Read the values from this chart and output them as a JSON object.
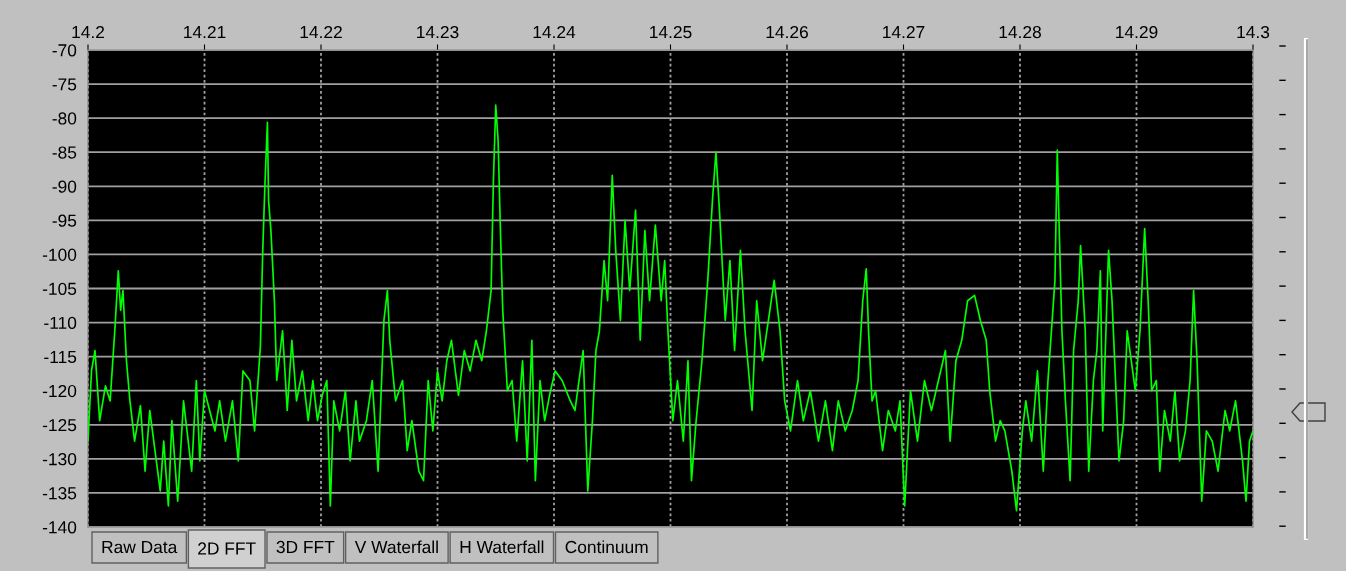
{
  "chart_data": {
    "type": "line",
    "x": [
      14.2,
      14.2003,
      14.2006,
      14.201,
      14.2015,
      14.2019,
      14.2023,
      14.2026,
      14.2028,
      14.203,
      14.2033,
      14.2036,
      14.204,
      14.2045,
      14.2049,
      14.2053,
      14.2062,
      14.2065,
      14.2069,
      14.2072,
      14.2077,
      14.2082,
      14.2086,
      14.2089,
      14.2093,
      14.2096,
      14.21,
      14.2109,
      14.2113,
      14.2118,
      14.2124,
      14.2129,
      14.2133,
      14.2139,
      14.2143,
      14.2148,
      14.215,
      14.2152,
      14.2154,
      14.2155,
      14.2157,
      14.216,
      14.2162,
      14.2167,
      14.2171,
      14.2175,
      14.2179,
      14.2184,
      14.2189,
      14.2193,
      14.2197,
      14.2201,
      14.2205,
      14.2208,
      14.2211,
      14.2216,
      14.2221,
      14.2225,
      14.223,
      14.2233,
      14.2239,
      14.2244,
      14.2249,
      14.2254,
      14.2257,
      14.2259,
      14.2264,
      14.227,
      14.2274,
      14.2278,
      14.2284,
      14.2288,
      14.2292,
      14.2296,
      14.23,
      14.2304,
      14.2308,
      14.2312,
      14.2318,
      14.2323,
      14.2328,
      14.2333,
      14.2338,
      14.2342,
      14.2346,
      14.2348,
      14.235,
      14.2352,
      14.2354,
      14.2356,
      14.236,
      14.2364,
      14.2368,
      14.2373,
      14.2377,
      14.2381,
      14.2384,
      14.2388,
      14.2392,
      14.2397,
      14.2401,
      14.2407,
      14.2414,
      14.2418,
      14.2425,
      14.2429,
      14.2433,
      14.2436,
      14.2439,
      14.2443,
      14.2446,
      14.245,
      14.2453,
      14.2457,
      14.2461,
      14.2465,
      14.247,
      14.2474,
      14.2478,
      14.2482,
      14.2487,
      14.2492,
      14.2495,
      14.2498,
      14.2502,
      14.2506,
      14.2511,
      14.2515,
      14.2518,
      14.2522,
      14.2527,
      14.2532,
      14.2536,
      14.2539,
      14.2542,
      14.2547,
      14.2551,
      14.2555,
      14.256,
      14.2564,
      14.257,
      14.2574,
      14.2579,
      14.2584,
      14.2589,
      14.2594,
      14.2598,
      14.2603,
      14.2609,
      14.2614,
      14.262,
      14.2627,
      14.2633,
      14.2639,
      14.2644,
      14.265,
      14.2656,
      14.2661,
      14.2665,
      14.2668,
      14.267,
      14.2673,
      14.2676,
      14.2682,
      14.2687,
      14.2693,
      14.2697,
      14.2701,
      14.2706,
      14.2712,
      14.2718,
      14.2724,
      14.273,
      14.2736,
      14.274,
      14.2745,
      14.275,
      14.2755,
      14.2761,
      14.2766,
      14.2771,
      14.2774,
      14.2779,
      14.2783,
      14.2787,
      14.2793,
      14.2797,
      14.2802,
      14.2805,
      14.281,
      14.2815,
      14.282,
      14.2824,
      14.2827,
      14.283,
      14.2832,
      14.2833,
      14.2836,
      14.2839,
      14.2843,
      14.2846,
      14.285,
      14.2852,
      14.2856,
      14.2859,
      14.2863,
      14.2866,
      14.2869,
      14.2871,
      14.2876,
      14.2879,
      14.2882,
      14.2885,
      14.2889,
      14.2892,
      14.2899,
      14.2903,
      14.2907,
      14.291,
      14.2913,
      14.2917,
      14.292,
      14.2924,
      14.2929,
      14.2933,
      14.2937,
      14.2942,
      14.2946,
      14.2949,
      14.2952,
      14.2956,
      14.296,
      14.2965,
      14.297,
      14.2976,
      14.298,
      14.2985,
      14.2991,
      14.2994,
      14.2997,
      14.3
    ],
    "series": [
      {
        "color": "#00ff00",
        "values": [
          -127.4,
          -117.1,
          -114.1,
          -124.4,
          -119.3,
          -121.5,
          -111.2,
          -102.4,
          -108.2,
          -105.3,
          -115.6,
          -121.5,
          -127.4,
          -122.2,
          -131.8,
          -122.9,
          -134.7,
          -127.4,
          -136.9,
          -124.4,
          -136.2,
          -121.5,
          -127.4,
          -131.8,
          -118.5,
          -130.3,
          -120.0,
          -125.9,
          -121.5,
          -127.4,
          -121.5,
          -130.3,
          -117.1,
          -118.5,
          -125.9,
          -113.4,
          -99.4,
          -89.1,
          -80.6,
          -92.1,
          -96.5,
          -106.8,
          -118.5,
          -111.2,
          -122.9,
          -112.6,
          -121.5,
          -117.1,
          -124.4,
          -118.5,
          -124.4,
          -120.7,
          -118.5,
          -136.9,
          -121.5,
          -125.9,
          -120.0,
          -130.3,
          -121.5,
          -127.4,
          -124.4,
          -118.5,
          -131.8,
          -109.7,
          -105.3,
          -112.6,
          -121.5,
          -118.5,
          -128.8,
          -124.4,
          -131.8,
          -133.2,
          -118.5,
          -125.9,
          -117.1,
          -121.5,
          -115.6,
          -112.6,
          -120.7,
          -114.1,
          -117.1,
          -112.6,
          -115.6,
          -111.2,
          -105.3,
          -89.1,
          -78.1,
          -83.2,
          -96.5,
          -108.2,
          -120.0,
          -118.5,
          -127.4,
          -115.6,
          -130.3,
          -112.6,
          -133.2,
          -118.5,
          -124.4,
          -120.0,
          -117.1,
          -118.5,
          -121.5,
          -122.9,
          -114.1,
          -134.7,
          -124.4,
          -114.1,
          -111.2,
          -100.9,
          -106.8,
          -88.4,
          -99.4,
          -109.7,
          -95.0,
          -105.3,
          -93.5,
          -112.6,
          -96.5,
          -106.8,
          -95.7,
          -106.8,
          -100.9,
          -111.9,
          -124.4,
          -118.5,
          -127.4,
          -115.6,
          -133.2,
          -124.4,
          -115.6,
          -103.8,
          -92.1,
          -85.0,
          -93.5,
          -109.7,
          -100.9,
          -114.1,
          -99.4,
          -111.2,
          -122.9,
          -106.8,
          -115.6,
          -109.7,
          -103.8,
          -111.2,
          -121.5,
          -125.9,
          -118.5,
          -124.4,
          -120.0,
          -127.4,
          -121.5,
          -128.8,
          -121.5,
          -125.9,
          -122.9,
          -118.5,
          -106.8,
          -102.1,
          -111.2,
          -121.5,
          -120.0,
          -128.8,
          -122.9,
          -125.9,
          -121.5,
          -136.9,
          -120.0,
          -127.4,
          -118.5,
          -122.9,
          -118.5,
          -114.1,
          -127.4,
          -115.6,
          -112.6,
          -106.8,
          -106.0,
          -109.7,
          -112.6,
          -120.0,
          -127.4,
          -124.4,
          -125.9,
          -131.8,
          -137.6,
          -125.9,
          -121.5,
          -127.4,
          -117.1,
          -131.8,
          -118.5,
          -111.2,
          -103.8,
          -84.7,
          -92.1,
          -111.2,
          -121.5,
          -133.2,
          -114.1,
          -106.8,
          -98.7,
          -111.2,
          -131.8,
          -118.5,
          -114.1,
          -102.4,
          -125.9,
          -99.4,
          -106.8,
          -118.5,
          -130.3,
          -124.4,
          -111.2,
          -120.0,
          -111.2,
          -96.2,
          -106.8,
          -120.0,
          -118.5,
          -131.8,
          -122.9,
          -127.4,
          -120.0,
          -130.3,
          -125.9,
          -118.5,
          -105.3,
          -115.6,
          -136.2,
          -125.9,
          -127.4,
          -131.8,
          -122.9,
          -125.9,
          -121.5,
          -130.3,
          -136.2,
          -127.4,
          -125.9
        ]
      }
    ],
    "xlim": [
      14.2,
      14.3
    ],
    "xticks": [
      14.2,
      14.21,
      14.22,
      14.23,
      14.24,
      14.25,
      14.26,
      14.27,
      14.28,
      14.29,
      14.3
    ],
    "ylim": [
      -140,
      -70
    ],
    "yticks": [
      -140,
      -135,
      -130,
      -125,
      -120,
      -115,
      -110,
      -105,
      -100,
      -95,
      -90,
      -85,
      -80,
      -75,
      -70
    ],
    "grid": true,
    "annotations": [
      "Raw Data",
      "2D FFT",
      "3D FFT",
      "V Waterfall",
      "H Waterfall",
      "Continuum"
    ]
  }
}
